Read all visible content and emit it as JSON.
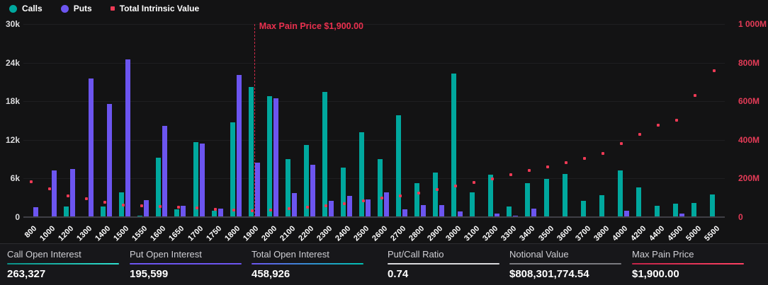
{
  "colors": {
    "background": "#131314",
    "calls": "#00A89E",
    "puts": "#6C55F0",
    "intrinsic": "#EE3A55",
    "max_pain_line": "#CF2A48",
    "max_pain_text": "#E9304E",
    "right_axis_text": "#E43B57",
    "grid": "#1E1E21"
  },
  "legend": [
    {
      "label": "Calls",
      "marker": "circle",
      "color": "#00A89E"
    },
    {
      "label": "Puts",
      "marker": "circle",
      "color": "#6C55F0"
    },
    {
      "label": "Total Intrinsic Value",
      "marker": "square",
      "color": "#EE3A55"
    }
  ],
  "chart": {
    "max_pain_label": "Max Pain Price $1,900.00",
    "max_pain_strike": "1900",
    "left_axis_labels": [
      "30k",
      "24k",
      "18k",
      "12k",
      "6k",
      "0"
    ],
    "right_axis_labels": [
      "1 000M",
      "800M",
      "600M",
      "400M",
      "200M",
      "0"
    ]
  },
  "chart_data": {
    "type": "bar",
    "grid": "horizontal",
    "legend_position": "top-left",
    "left_ylim": [
      0,
      30000
    ],
    "right_ylim_millions": [
      0,
      1000
    ],
    "categories": [
      "800",
      "1000",
      "1200",
      "1300",
      "1400",
      "1500",
      "1550",
      "1600",
      "1650",
      "1700",
      "1750",
      "1800",
      "1900",
      "2000",
      "2100",
      "2200",
      "2300",
      "2400",
      "2500",
      "2600",
      "2700",
      "2800",
      "2900",
      "3000",
      "3100",
      "3200",
      "3300",
      "3400",
      "3500",
      "3600",
      "3700",
      "3800",
      "4000",
      "4200",
      "4400",
      "4500",
      "5000",
      "5500"
    ],
    "series": [
      {
        "name": "Calls",
        "type": "bar",
        "axis": "left",
        "color": "#00A89E",
        "values": [
          0,
          0,
          1600,
          0,
          1700,
          3900,
          200,
          9200,
          1200,
          11600,
          1000,
          14700,
          20200,
          18800,
          9000,
          11200,
          19500,
          7700,
          13200,
          9000,
          15800,
          5300,
          6900,
          22300,
          3900,
          6600,
          1600,
          5300,
          5900,
          6700,
          2500,
          3400,
          7200,
          4600,
          1800,
          2100,
          2200,
          3500
        ]
      },
      {
        "name": "Puts",
        "type": "bar",
        "axis": "left",
        "color": "#6C55F0",
        "values": [
          1500,
          7200,
          7500,
          21500,
          17600,
          24500,
          2600,
          14200,
          1800,
          11400,
          1300,
          22100,
          8500,
          18500,
          3700,
          8100,
          2500,
          3300,
          2700,
          3800,
          1200,
          1900,
          1900,
          900,
          150,
          500,
          200,
          1300,
          0,
          0,
          0,
          0,
          1000,
          0,
          0,
          600,
          0,
          150
        ]
      },
      {
        "name": "Total Intrinsic Value",
        "type": "scatter",
        "axis": "right",
        "color": "#EE3A55",
        "values_millions": [
          185,
          148,
          110,
          97,
          78,
          64,
          60,
          56,
          52,
          47,
          42,
          37,
          32,
          37,
          43,
          52,
          60,
          70,
          85,
          98,
          110,
          125,
          143,
          160,
          179,
          198,
          219,
          241,
          260,
          283,
          306,
          330,
          381,
          428,
          478,
          503,
          631,
          758
        ]
      }
    ]
  },
  "stats": [
    {
      "label": "Call Open Interest",
      "value": "263,327",
      "underline": "linear-gradient(90deg,#0A8F86,#2FE0CF)"
    },
    {
      "label": "Put Open Interest",
      "value": "195,599",
      "underline": "#6C55F0"
    },
    {
      "label": "Total Open Interest",
      "value": "458,926",
      "underline": "linear-gradient(90deg,#6C55F0,#00C2B2)"
    },
    {
      "label": "Put/Call Ratio",
      "value": "0.74",
      "underline": "#D9D9DC"
    },
    {
      "label": "Notional Value",
      "value": "$808,301,774.54",
      "underline": "#7B7B80"
    },
    {
      "label": "Max Pain Price",
      "value": "$1,900.00",
      "underline": "linear-gradient(90deg,#C22448,#FF4163)"
    }
  ]
}
